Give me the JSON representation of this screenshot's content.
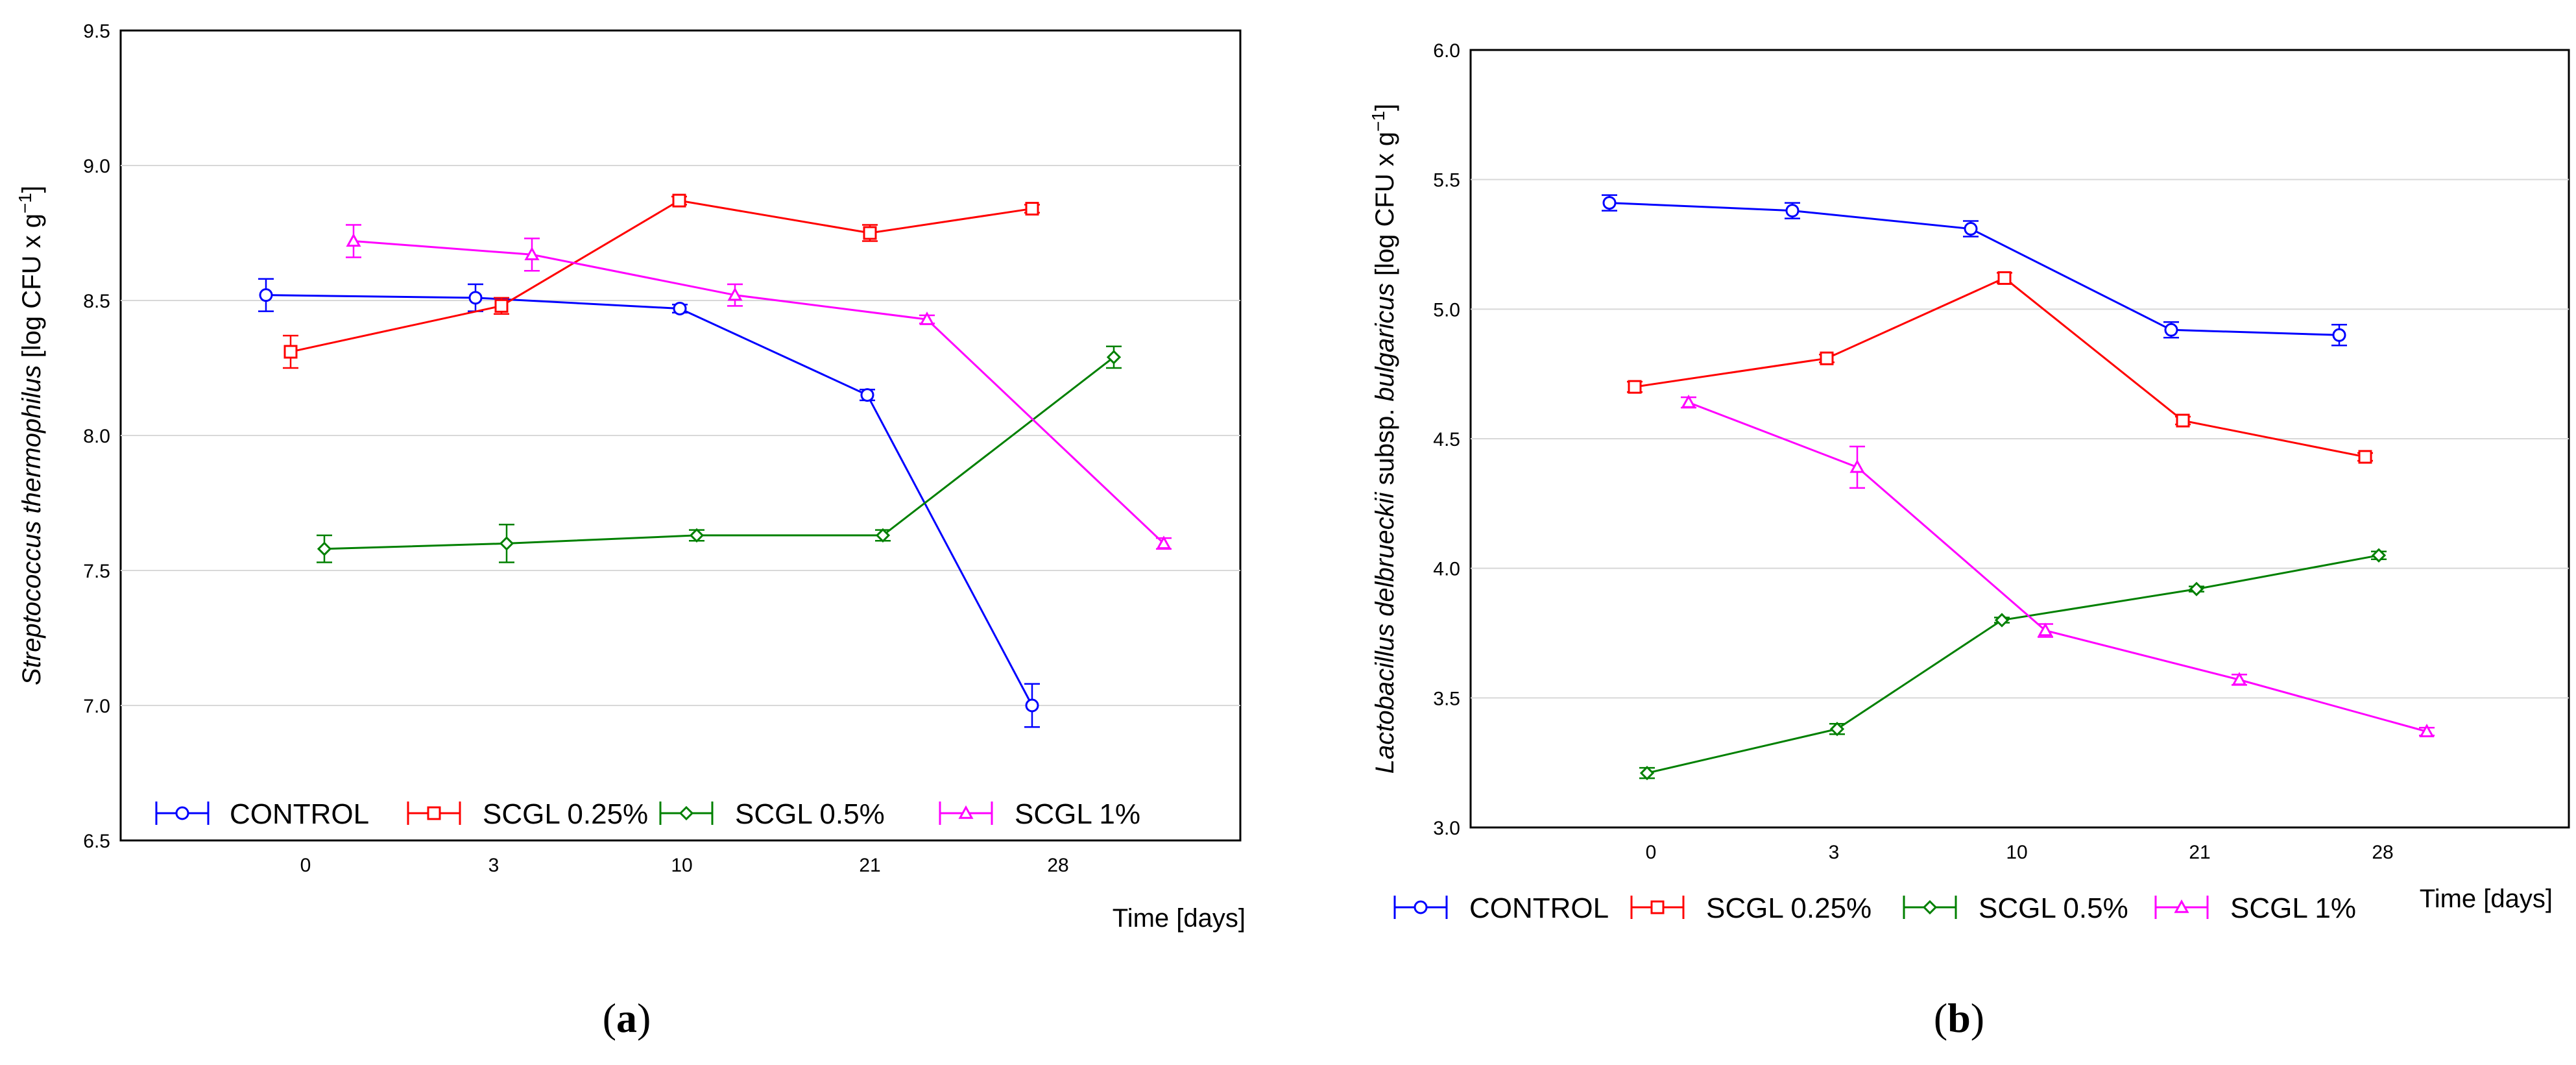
{
  "chart_data": [
    {
      "panel": "a",
      "panel_label_open": "(",
      "panel_label_letter": "a",
      "panel_label_close": ")",
      "type": "line",
      "title": "",
      "xlabel": "Time [days]",
      "ylabel_italic": "Streptococcus thermophilus",
      "ylabel_rest": " [log CFU x g",
      "ylabel_sup": "−1",
      "ylabel_end": "]",
      "ylim": [
        6.5,
        9.5
      ],
      "yticks": [
        "6.5",
        "7.0",
        "7.5",
        "8.0",
        "8.5",
        "9.0",
        "9.5"
      ],
      "categories": [
        "0",
        "3",
        "10",
        "21",
        "28"
      ],
      "grid": true,
      "legend_position": "bottom-left",
      "series": [
        {
          "name": "CONTROL",
          "color": "#0000ff",
          "marker": "circle",
          "values": [
            8.52,
            8.51,
            8.47,
            8.15,
            7.0
          ],
          "errors": [
            0.06,
            0.05,
            0.015,
            0.02,
            0.08
          ]
        },
        {
          "name": "SCGL 0.25%",
          "color": "#ff0000",
          "marker": "square",
          "values": [
            8.31,
            8.48,
            8.87,
            8.75,
            8.84
          ],
          "errors": [
            0.06,
            0.03,
            0.015,
            0.03,
            0.015
          ]
        },
        {
          "name": "SCGL 0.5%",
          "color": "#008000",
          "marker": "diamond",
          "values": [
            7.58,
            7.6,
            7.63,
            7.63,
            8.29
          ],
          "errors": [
            0.05,
            0.07,
            0.02,
            0.02,
            0.04
          ]
        },
        {
          "name": "SCGL 1%",
          "color": "#ff00ff",
          "marker": "triangle",
          "values": [
            8.72,
            8.67,
            8.52,
            8.43,
            7.6
          ],
          "errors": [
            0.06,
            0.06,
            0.04,
            0.015,
            0.02
          ]
        }
      ]
    },
    {
      "panel": "b",
      "panel_label_open": "(",
      "panel_label_letter": "b",
      "panel_label_close": ")",
      "type": "line",
      "title": "",
      "xlabel": "Time [days]",
      "ylabel_italic": "Lactobacillus delbrueckii",
      "ylabel_mid": " subsp. ",
      "ylabel_italic2": "bulgaricus",
      "ylabel_rest": " [log CFU x g",
      "ylabel_sup": "−1",
      "ylabel_end": "]",
      "ylim": [
        3.0,
        6.0
      ],
      "yticks": [
        "3.0",
        "3.5",
        "4.0",
        "4.5",
        "5.0",
        "5.5",
        "6.0"
      ],
      "categories": [
        "0",
        "3",
        "10",
        "21",
        "28"
      ],
      "grid": true,
      "legend_position": "bottom",
      "series": [
        {
          "name": "CONTROL",
          "color": "#0000ff",
          "marker": "circle",
          "values": [
            5.41,
            5.38,
            5.31,
            4.92,
            4.9
          ],
          "errors": [
            0.03,
            0.03,
            0.03,
            0.03,
            0.04
          ]
        },
        {
          "name": "SCGL 0.25%",
          "color": "#ff0000",
          "marker": "square",
          "values": [
            4.7,
            4.81,
            5.12,
            4.57,
            4.43
          ],
          "errors": [
            0.02,
            0.015,
            0.02,
            0.015,
            0.015
          ]
        },
        {
          "name": "SCGL 0.5%",
          "color": "#008000",
          "marker": "diamond",
          "values": [
            3.21,
            3.38,
            3.8,
            3.92,
            4.05
          ],
          "errors": [
            0.02,
            0.02,
            0.01,
            0.01,
            0.015
          ]
        },
        {
          "name": "SCGL 1%",
          "color": "#ff00ff",
          "marker": "triangle",
          "values": [
            4.64,
            4.39,
            3.76,
            3.57,
            3.37
          ],
          "errors": [
            0.02,
            0.08,
            0.025,
            0.02,
            0.015
          ]
        }
      ]
    }
  ]
}
